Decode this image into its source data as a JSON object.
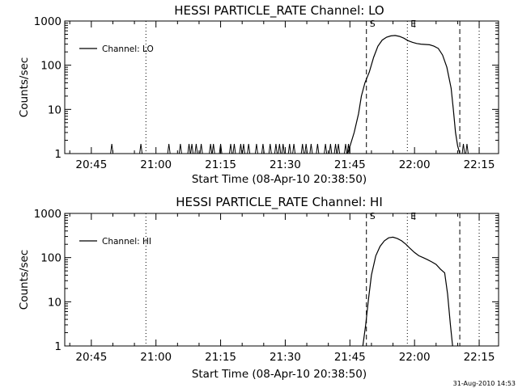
{
  "footer": {
    "timestamp": "31-Aug-2010 14:53"
  },
  "colors": {
    "background": "#ffffff",
    "ink": "#000000"
  },
  "chart_data": [
    {
      "type": "line",
      "title": "HESSI PARTICLE_RATE Channel: LO",
      "xlabel": "Start Time (08-Apr-10 20:38:50)",
      "ylabel": "Counts/sec",
      "yscale": "log",
      "xlim": [
        "20:38:50",
        "22:19:30"
      ],
      "ylim": [
        1,
        1000
      ],
      "x_ticks": [
        "20:45",
        "21:00",
        "21:15",
        "21:30",
        "21:45",
        "22:00",
        "22:15"
      ],
      "y_ticks": [
        "1",
        "10",
        "100",
        "1000"
      ],
      "legend": {
        "position": "upper-left",
        "entries": [
          "Channel: LO"
        ]
      },
      "event_lines": [
        {
          "time": "20:57:40",
          "style": "dotted",
          "label": ""
        },
        {
          "time": "21:48:50",
          "style": "dashed",
          "label": "S"
        },
        {
          "time": "21:58:20",
          "style": "dotted",
          "label": "E"
        },
        {
          "time": "22:10:30",
          "style": "dashed",
          "label": ""
        },
        {
          "time": "22:15:00",
          "style": "dotted",
          "label": ""
        }
      ],
      "series": [
        {
          "name": "Channel: LO",
          "spikes_at_1": [
            "20:49:45",
            "20:56:30",
            "21:03:00",
            "21:05:40",
            "21:07:40",
            "21:08:20",
            "21:09:20",
            "21:10:30",
            "21:12:40",
            "21:13:20",
            "21:15:00",
            "21:17:20",
            "21:18:10",
            "21:19:40",
            "21:20:20",
            "21:21:30",
            "21:23:20",
            "21:24:50",
            "21:26:30",
            "21:27:50",
            "21:28:40",
            "21:29:30",
            "21:31:00",
            "21:32:00",
            "21:34:00",
            "21:34:50",
            "21:36:00",
            "21:37:30",
            "21:39:20",
            "21:40:30",
            "21:41:40",
            "21:42:20",
            "21:44:00",
            "21:44:40"
          ],
          "points": [
            [
              "21:44:30",
              1.0
            ],
            [
              "21:46:00",
              3
            ],
            [
              "21:47:00",
              8
            ],
            [
              "21:47:40",
              20
            ],
            [
              "21:48:30",
              40
            ],
            [
              "21:49:30",
              70
            ],
            [
              "21:50:30",
              150
            ],
            [
              "21:51:30",
              270
            ],
            [
              "21:52:30",
              370
            ],
            [
              "21:53:30",
              430
            ],
            [
              "21:54:30",
              460
            ],
            [
              "21:55:30",
              470
            ],
            [
              "21:56:30",
              450
            ],
            [
              "21:57:30",
              410
            ],
            [
              "21:58:30",
              360
            ],
            [
              "21:59:30",
              330
            ],
            [
              "22:00:30",
              310
            ],
            [
              "22:01:30",
              300
            ],
            [
              "22:02:30",
              295
            ],
            [
              "22:03:30",
              290
            ],
            [
              "22:04:30",
              270
            ],
            [
              "22:05:30",
              240
            ],
            [
              "22:06:30",
              170
            ],
            [
              "22:07:30",
              90
            ],
            [
              "22:08:30",
              30
            ],
            [
              "22:09:00",
              10
            ],
            [
              "22:09:30",
              3
            ],
            [
              "22:10:00",
              1.5
            ],
            [
              "22:10:30",
              1.0
            ]
          ],
          "trailing_spikes": [
            "22:11:20",
            "22:12:10"
          ]
        }
      ]
    },
    {
      "type": "line",
      "title": "HESSI PARTICLE_RATE Channel: HI",
      "xlabel": "Start Time (08-Apr-10 20:38:50)",
      "ylabel": "Counts/sec",
      "yscale": "log",
      "xlim": [
        "20:38:50",
        "22:19:30"
      ],
      "ylim": [
        1,
        1000
      ],
      "x_ticks": [
        "20:45",
        "21:00",
        "21:15",
        "21:30",
        "21:45",
        "22:00",
        "22:15"
      ],
      "y_ticks": [
        "1",
        "10",
        "100",
        "1000"
      ],
      "legend": {
        "position": "upper-left",
        "entries": [
          "Channel: HI"
        ]
      },
      "event_lines": [
        {
          "time": "20:57:40",
          "style": "dotted",
          "label": ""
        },
        {
          "time": "21:48:50",
          "style": "dashed",
          "label": "S"
        },
        {
          "time": "21:58:20",
          "style": "dotted",
          "label": "E"
        },
        {
          "time": "22:10:30",
          "style": "dashed",
          "label": ""
        },
        {
          "time": "22:15:00",
          "style": "dotted",
          "label": ""
        }
      ],
      "series": [
        {
          "name": "Channel: HI",
          "spikes_at_1": [],
          "points": [
            [
              "21:48:00",
              1.0
            ],
            [
              "21:48:40",
              3
            ],
            [
              "21:49:20",
              12
            ],
            [
              "21:50:00",
              40
            ],
            [
              "21:51:00",
              110
            ],
            [
              "21:52:00",
              180
            ],
            [
              "21:53:00",
              240
            ],
            [
              "21:54:00",
              280
            ],
            [
              "21:55:00",
              290
            ],
            [
              "21:56:00",
              270
            ],
            [
              "21:57:00",
              240
            ],
            [
              "21:58:00",
              200
            ],
            [
              "21:59:00",
              160
            ],
            [
              "22:00:00",
              130
            ],
            [
              "22:01:00",
              110
            ],
            [
              "22:02:00",
              100
            ],
            [
              "22:03:00",
              90
            ],
            [
              "22:04:00",
              80
            ],
            [
              "22:05:00",
              70
            ],
            [
              "22:06:00",
              55
            ],
            [
              "22:07:00",
              45
            ],
            [
              "22:07:40",
              15
            ],
            [
              "22:08:20",
              3
            ],
            [
              "22:08:50",
              1.0
            ]
          ],
          "trailing_spikes": []
        }
      ]
    }
  ]
}
